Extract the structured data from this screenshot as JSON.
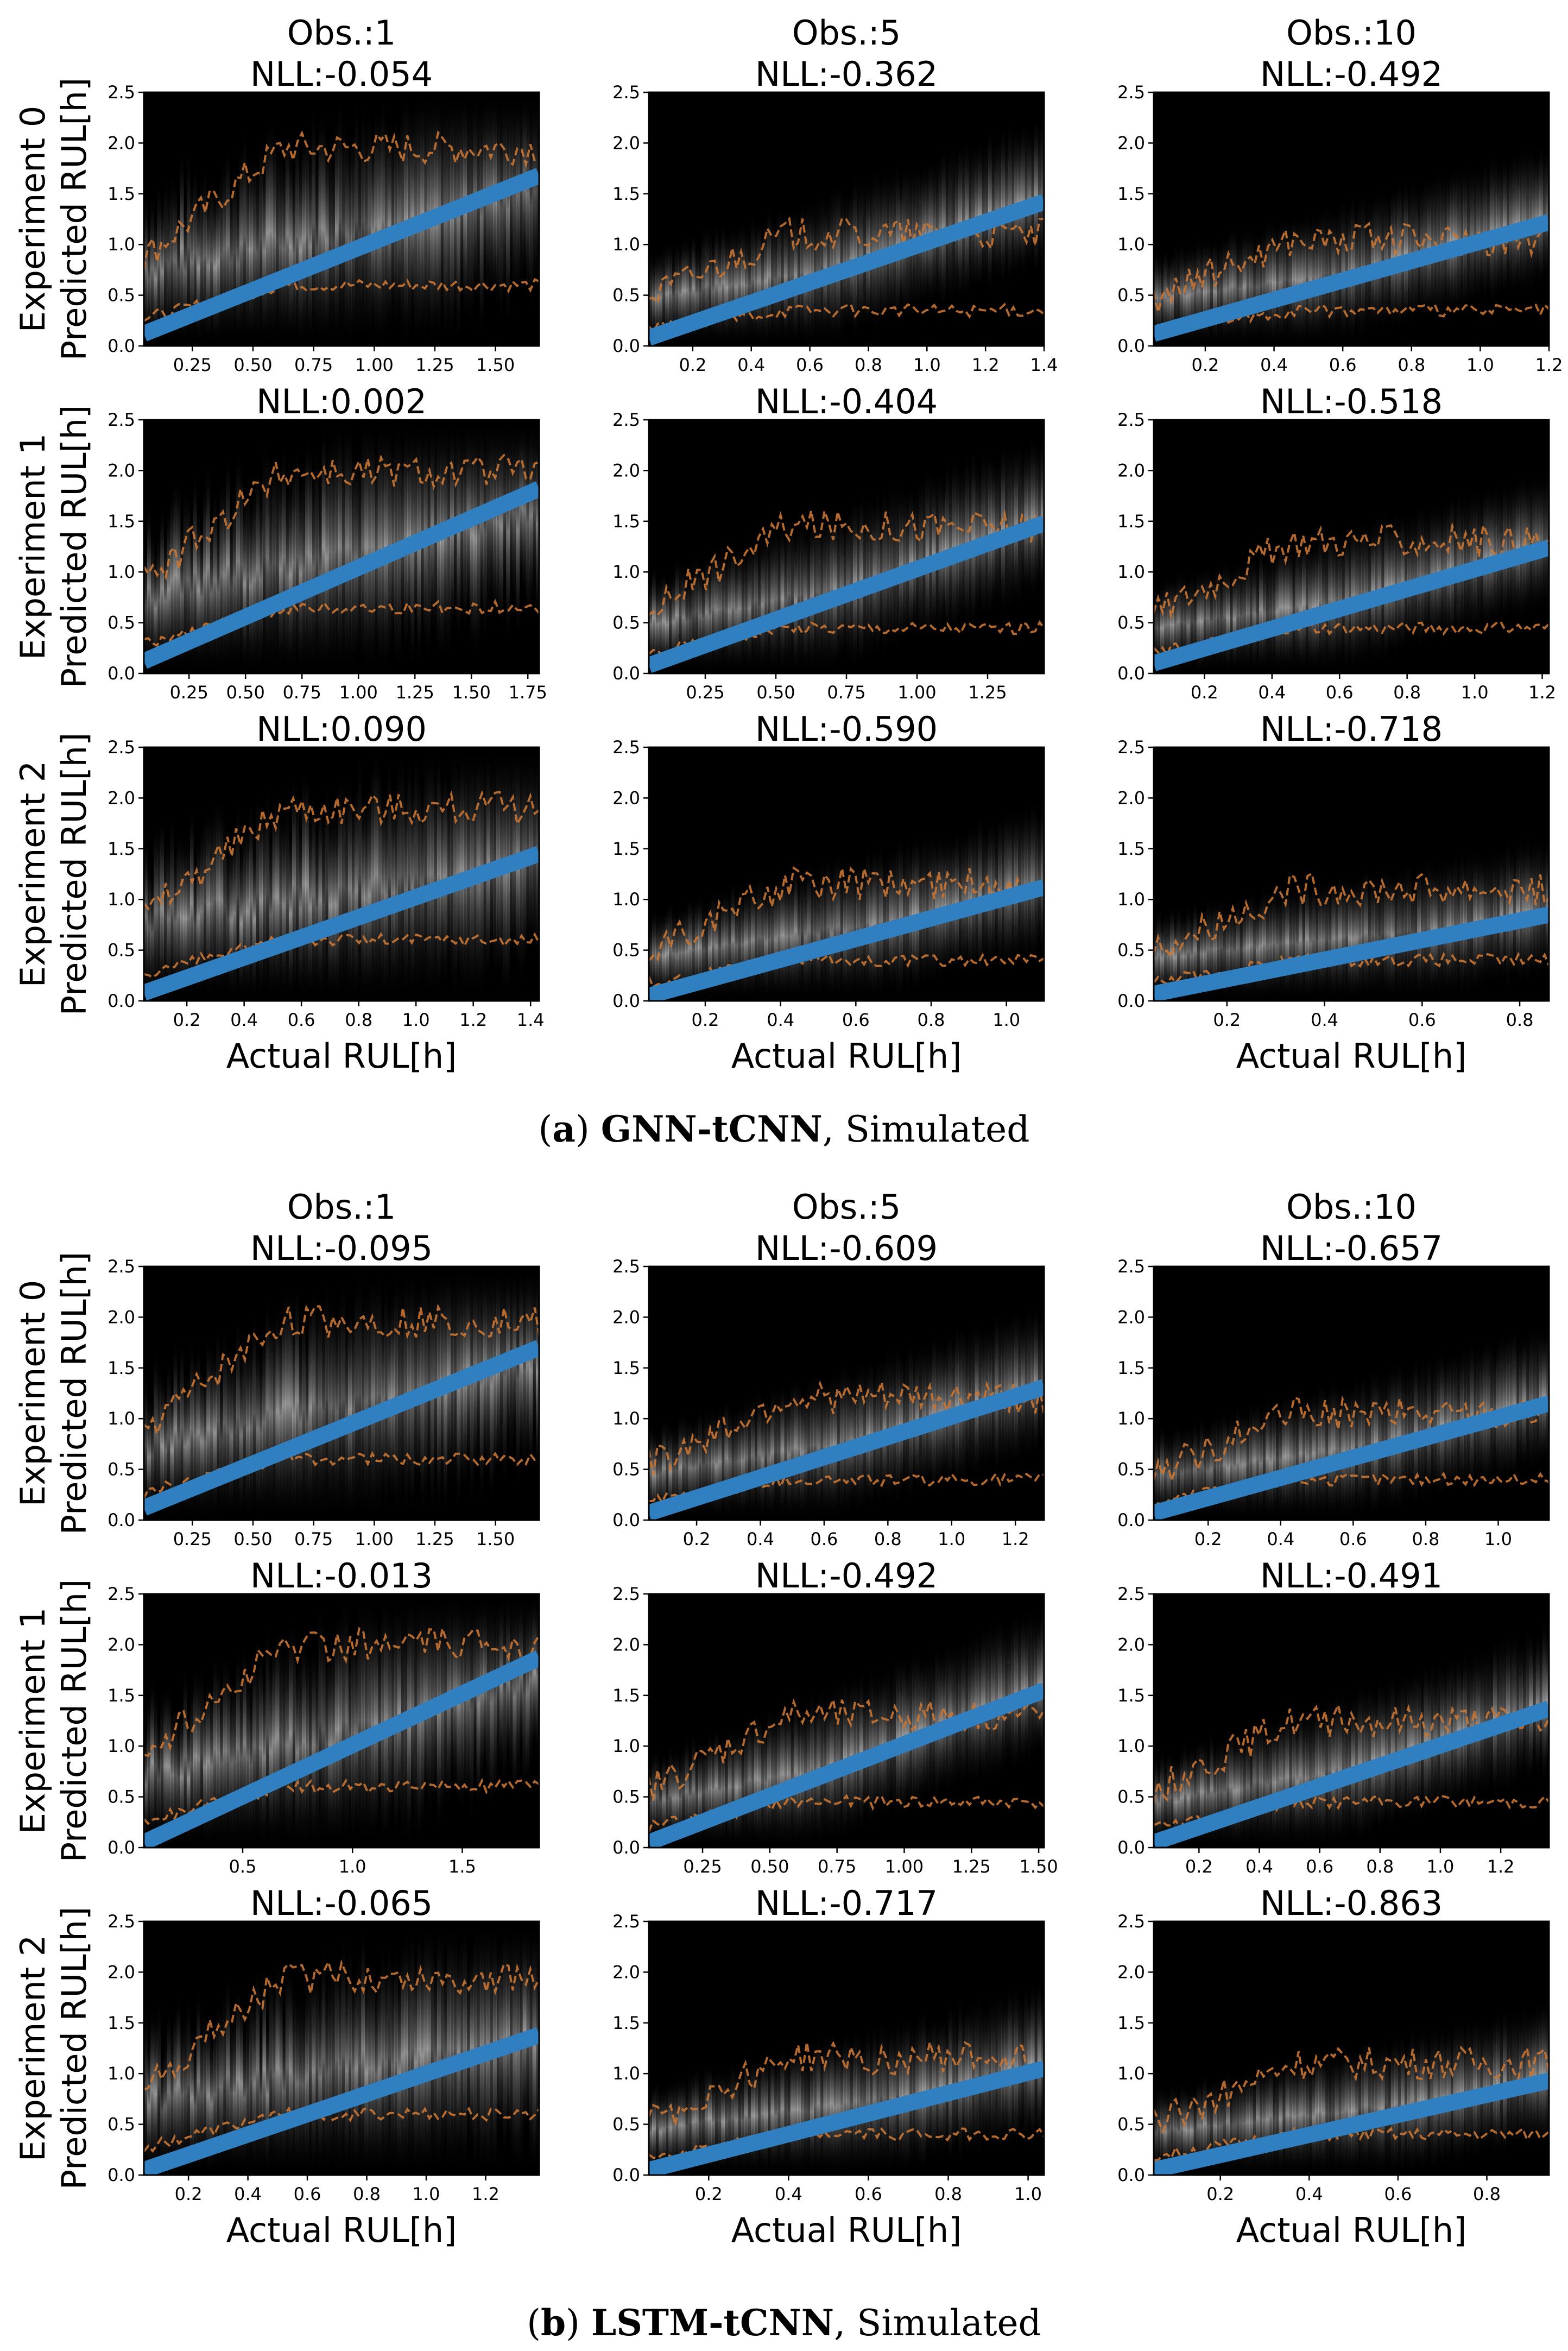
{
  "figure": {
    "captions": [
      {
        "prefix": "(",
        "letter": "a",
        "close": ")",
        "model": "GNN-tCNN",
        "rest": ", Simulated"
      },
      {
        "prefix": "(",
        "letter": "b",
        "close": ")",
        "model": "LSTM-tCNN",
        "rest": ", Simulated"
      }
    ],
    "column_titles": [
      "Obs.:1",
      "Obs.:5",
      "Obs.:10"
    ],
    "row_labels": [
      "Experiment 0",
      "Experiment 1",
      "Experiment 2"
    ],
    "ylabel": "Predicted RUL[h]",
    "xlabel": "Actual RUL[h]",
    "colors": {
      "fit_line": "#2f7fc1",
      "quantile": "#c87533",
      "background": "#000000",
      "density": "#cfcfcf"
    }
  },
  "chart_data": [
    {
      "type": "heatmap",
      "group": "GNN-tCNN",
      "row": 0,
      "col": 0,
      "title": "NLL:-0.054",
      "xlim": [
        0.05,
        1.68
      ],
      "xticks": [
        0.25,
        0.5,
        0.75,
        1.0,
        1.25,
        1.5
      ],
      "xtick_labels": [
        "0.25",
        "0.50",
        "0.75",
        "1.00",
        "1.25",
        "1.50"
      ],
      "ylim": [
        0,
        2.5
      ],
      "yticks": [
        0,
        0.5,
        1.0,
        1.5,
        2.0,
        2.5
      ],
      "ytick_labels": [
        "0.0",
        "0.5",
        "1.0",
        "1.5",
        "2.0",
        "2.5"
      ],
      "line": [
        [
          0.05,
          0.12
        ],
        [
          1.68,
          1.68
        ]
      ],
      "upper": 1.95,
      "lower": 0.6,
      "spread": 0.75
    },
    {
      "type": "heatmap",
      "group": "GNN-tCNN",
      "row": 0,
      "col": 1,
      "title": "NLL:-0.362",
      "xlim": [
        0.05,
        1.4
      ],
      "xticks": [
        0.2,
        0.4,
        0.6,
        0.8,
        1.0,
        1.2,
        1.4
      ],
      "xtick_labels": [
        "0.2",
        "0.4",
        "0.6",
        "0.8",
        "1.0",
        "1.2",
        "1.4"
      ],
      "ylim": [
        0,
        2.5
      ],
      "yticks": [
        0,
        0.5,
        1.0,
        1.5,
        2.0,
        2.5
      ],
      "ytick_labels": [
        "0.0",
        "0.5",
        "1.0",
        "1.5",
        "2.0",
        "2.5"
      ],
      "line": [
        [
          0.05,
          0.08
        ],
        [
          1.4,
          1.42
        ]
      ],
      "upper": 1.1,
      "lower": 0.35,
      "spread": 0.2
    },
    {
      "type": "heatmap",
      "group": "GNN-tCNN",
      "row": 0,
      "col": 2,
      "title": "NLL:-0.492",
      "xlim": [
        0.05,
        1.2
      ],
      "xticks": [
        0.2,
        0.4,
        0.6,
        0.8,
        1.0,
        1.2
      ],
      "xtick_labels": [
        "0.2",
        "0.4",
        "0.6",
        "0.8",
        "1.0",
        "1.2"
      ],
      "ylim": [
        0,
        2.5
      ],
      "yticks": [
        0,
        0.5,
        1.0,
        1.5,
        2.0,
        2.5
      ],
      "ytick_labels": [
        "0.0",
        "0.5",
        "1.0",
        "1.5",
        "2.0",
        "2.5"
      ],
      "line": [
        [
          0.05,
          0.12
        ],
        [
          1.2,
          1.22
        ]
      ],
      "upper": 1.05,
      "lower": 0.35,
      "spread": 0.15
    },
    {
      "type": "heatmap",
      "group": "GNN-tCNN",
      "row": 1,
      "col": 0,
      "title": "NLL:0.002",
      "xlim": [
        0.05,
        1.8
      ],
      "xticks": [
        0.25,
        0.5,
        0.75,
        1.0,
        1.25,
        1.5,
        1.75
      ],
      "xtick_labels": [
        "0.25",
        "0.50",
        "0.75",
        "1.00",
        "1.25",
        "1.50",
        "1.75"
      ],
      "ylim": [
        0,
        2.5
      ],
      "yticks": [
        0,
        0.5,
        1.0,
        1.5,
        2.0,
        2.5
      ],
      "ytick_labels": [
        "0.0",
        "0.5",
        "1.0",
        "1.5",
        "2.0",
        "2.5"
      ],
      "line": [
        [
          0.05,
          0.12
        ],
        [
          1.8,
          1.82
        ]
      ],
      "upper": 2.0,
      "lower": 0.65,
      "spread": 0.75
    },
    {
      "type": "heatmap",
      "group": "GNN-tCNN",
      "row": 1,
      "col": 1,
      "title": "NLL:-0.404",
      "xlim": [
        0.05,
        1.45
      ],
      "xticks": [
        0.25,
        0.5,
        0.75,
        1.0,
        1.25
      ],
      "xtick_labels": [
        "0.25",
        "0.50",
        "0.75",
        "1.00",
        "1.25"
      ],
      "ylim": [
        0,
        2.5
      ],
      "yticks": [
        0,
        0.5,
        1.0,
        1.5,
        2.0,
        2.5
      ],
      "ytick_labels": [
        "0.0",
        "0.5",
        "1.0",
        "1.5",
        "2.0",
        "2.5"
      ],
      "line": [
        [
          0.05,
          0.08
        ],
        [
          1.45,
          1.48
        ]
      ],
      "upper": 1.45,
      "lower": 0.45,
      "spread": 0.25
    },
    {
      "type": "heatmap",
      "group": "GNN-tCNN",
      "row": 1,
      "col": 2,
      "title": "NLL:-0.518",
      "xlim": [
        0.05,
        1.22
      ],
      "xticks": [
        0.2,
        0.4,
        0.6,
        0.8,
        1.0,
        1.2
      ],
      "xtick_labels": [
        "0.2",
        "0.4",
        "0.6",
        "0.8",
        "1.0",
        "1.2"
      ],
      "ylim": [
        0,
        2.5
      ],
      "yticks": [
        0,
        0.5,
        1.0,
        1.5,
        2.0,
        2.5
      ],
      "ytick_labels": [
        "0.0",
        "0.5",
        "1.0",
        "1.5",
        "2.0",
        "2.5"
      ],
      "line": [
        [
          0.05,
          0.1
        ],
        [
          1.22,
          1.24
        ]
      ],
      "upper": 1.3,
      "lower": 0.45,
      "spread": 0.15
    },
    {
      "type": "heatmap",
      "group": "GNN-tCNN",
      "row": 2,
      "col": 0,
      "title": "NLL:0.090",
      "xlim": [
        0.05,
        1.43
      ],
      "xticks": [
        0.2,
        0.4,
        0.6,
        0.8,
        1.0,
        1.2,
        1.4
      ],
      "xtick_labels": [
        "0.2",
        "0.4",
        "0.6",
        "0.8",
        "1.0",
        "1.2",
        "1.4"
      ],
      "ylim": [
        0,
        2.5
      ],
      "yticks": [
        0,
        0.5,
        1.0,
        1.5,
        2.0,
        2.5
      ],
      "ytick_labels": [
        "0.0",
        "0.5",
        "1.0",
        "1.5",
        "2.0",
        "2.5"
      ],
      "line": [
        [
          0.05,
          0.08
        ],
        [
          1.43,
          1.45
        ]
      ],
      "upper": 1.9,
      "lower": 0.6,
      "spread": 0.75
    },
    {
      "type": "heatmap",
      "group": "GNN-tCNN",
      "row": 2,
      "col": 1,
      "title": "NLL:-0.590",
      "xlim": [
        0.05,
        1.1
      ],
      "xticks": [
        0.2,
        0.4,
        0.6,
        0.8,
        1.0
      ],
      "xtick_labels": [
        "0.2",
        "0.4",
        "0.6",
        "0.8",
        "1.0"
      ],
      "ylim": [
        0,
        2.5
      ],
      "yticks": [
        0,
        0.5,
        1.0,
        1.5,
        2.0,
        2.5
      ],
      "ytick_labels": [
        "0.0",
        "0.5",
        "1.0",
        "1.5",
        "2.0",
        "2.5"
      ],
      "line": [
        [
          0.05,
          0.05
        ],
        [
          1.1,
          1.12
        ]
      ],
      "upper": 1.15,
      "lower": 0.4,
      "spread": 0.2
    },
    {
      "type": "heatmap",
      "group": "GNN-tCNN",
      "row": 2,
      "col": 2,
      "title": "NLL:-0.718",
      "xlim": [
        0.05,
        0.86
      ],
      "xticks": [
        0.2,
        0.4,
        0.6,
        0.8
      ],
      "xtick_labels": [
        "0.2",
        "0.4",
        "0.6",
        "0.8"
      ],
      "ylim": [
        0,
        2.5
      ],
      "yticks": [
        0,
        0.5,
        1.0,
        1.5,
        2.0,
        2.5
      ],
      "ytick_labels": [
        "0.0",
        "0.5",
        "1.0",
        "1.5",
        "2.0",
        "2.5"
      ],
      "line": [
        [
          0.05,
          0.07
        ],
        [
          0.86,
          0.85
        ]
      ],
      "upper": 1.1,
      "lower": 0.4,
      "spread": 0.15
    },
    {
      "type": "heatmap",
      "group": "LSTM-tCNN",
      "row": 0,
      "col": 0,
      "title": "NLL:-0.095",
      "xlim": [
        0.05,
        1.68
      ],
      "xticks": [
        0.25,
        0.5,
        0.75,
        1.0,
        1.25,
        1.5
      ],
      "xtick_labels": [
        "0.25",
        "0.50",
        "0.75",
        "1.00",
        "1.25",
        "1.50"
      ],
      "ylim": [
        0,
        2.5
      ],
      "yticks": [
        0,
        0.5,
        1.0,
        1.5,
        2.0,
        2.5
      ],
      "ytick_labels": [
        "0.0",
        "0.5",
        "1.0",
        "1.5",
        "2.0",
        "2.5"
      ],
      "line": [
        [
          0.05,
          0.12
        ],
        [
          1.68,
          1.7
        ]
      ],
      "upper": 1.95,
      "lower": 0.6,
      "spread": 0.7
    },
    {
      "type": "heatmap",
      "group": "LSTM-tCNN",
      "row": 0,
      "col": 1,
      "title": "NLL:-0.609",
      "xlim": [
        0.05,
        1.29
      ],
      "xticks": [
        0.2,
        0.4,
        0.6,
        0.8,
        1.0,
        1.2
      ],
      "xtick_labels": [
        "0.2",
        "0.4",
        "0.6",
        "0.8",
        "1.0",
        "1.2"
      ],
      "ylim": [
        0,
        2.5
      ],
      "yticks": [
        0,
        0.5,
        1.0,
        1.5,
        2.0,
        2.5
      ],
      "ytick_labels": [
        "0.0",
        "0.5",
        "1.0",
        "1.5",
        "2.0",
        "2.5"
      ],
      "line": [
        [
          0.05,
          0.07
        ],
        [
          1.29,
          1.31
        ]
      ],
      "upper": 1.2,
      "lower": 0.4,
      "spread": 0.2
    },
    {
      "type": "heatmap",
      "group": "LSTM-tCNN",
      "row": 0,
      "col": 2,
      "title": "NLL:-0.657",
      "xlim": [
        0.05,
        1.14
      ],
      "xticks": [
        0.2,
        0.4,
        0.6,
        0.8,
        1.0
      ],
      "xtick_labels": [
        "0.2",
        "0.4",
        "0.6",
        "0.8",
        "1.0"
      ],
      "ylim": [
        0,
        2.5
      ],
      "yticks": [
        0,
        0.5,
        1.0,
        1.5,
        2.0,
        2.5
      ],
      "ytick_labels": [
        "0.0",
        "0.5",
        "1.0",
        "1.5",
        "2.0",
        "2.5"
      ],
      "line": [
        [
          0.05,
          0.07
        ],
        [
          1.14,
          1.15
        ]
      ],
      "upper": 1.05,
      "lower": 0.4,
      "spread": 0.15
    },
    {
      "type": "heatmap",
      "group": "LSTM-tCNN",
      "row": 1,
      "col": 0,
      "title": "NLL:-0.013",
      "xlim": [
        0.05,
        1.85
      ],
      "xticks": [
        0.5,
        1.0,
        1.5
      ],
      "xtick_labels": [
        "0.5",
        "1.0",
        "1.5"
      ],
      "ylim": [
        0,
        2.5
      ],
      "yticks": [
        0,
        0.5,
        1.0,
        1.5,
        2.0,
        2.5
      ],
      "ytick_labels": [
        "0.0",
        "0.5",
        "1.0",
        "1.5",
        "2.0",
        "2.5"
      ],
      "line": [
        [
          0.05,
          0.05
        ],
        [
          1.85,
          1.87
        ]
      ],
      "upper": 2.0,
      "lower": 0.6,
      "spread": 0.7
    },
    {
      "type": "heatmap",
      "group": "LSTM-tCNN",
      "row": 1,
      "col": 1,
      "title": "NLL:-0.492",
      "xlim": [
        0.05,
        1.52
      ],
      "xticks": [
        0.25,
        0.5,
        0.75,
        1.0,
        1.25,
        1.5
      ],
      "xtick_labels": [
        "0.25",
        "0.50",
        "0.75",
        "1.00",
        "1.25",
        "1.50"
      ],
      "ylim": [
        0,
        2.5
      ],
      "yticks": [
        0,
        0.5,
        1.0,
        1.5,
        2.0,
        2.5
      ],
      "ytick_labels": [
        "0.0",
        "0.5",
        "1.0",
        "1.5",
        "2.0",
        "2.5"
      ],
      "line": [
        [
          0.05,
          0.05
        ],
        [
          1.52,
          1.55
        ]
      ],
      "upper": 1.3,
      "lower": 0.45,
      "spread": 0.2
    },
    {
      "type": "heatmap",
      "group": "LSTM-tCNN",
      "row": 1,
      "col": 2,
      "title": "NLL:-0.491",
      "xlim": [
        0.05,
        1.36
      ],
      "xticks": [
        0.2,
        0.4,
        0.6,
        0.8,
        1.0,
        1.2
      ],
      "xtick_labels": [
        "0.2",
        "0.4",
        "0.6",
        "0.8",
        "1.0",
        "1.2"
      ],
      "ylim": [
        0,
        2.5
      ],
      "yticks": [
        0,
        0.5,
        1.0,
        1.5,
        2.0,
        2.5
      ],
      "ytick_labels": [
        "0.0",
        "0.5",
        "1.0",
        "1.5",
        "2.0",
        "2.5"
      ],
      "line": [
        [
          0.05,
          0.05
        ],
        [
          1.36,
          1.37
        ]
      ],
      "upper": 1.25,
      "lower": 0.45,
      "spread": 0.2
    },
    {
      "type": "heatmap",
      "group": "LSTM-tCNN",
      "row": 2,
      "col": 0,
      "title": "NLL:-0.065",
      "xlim": [
        0.05,
        1.38
      ],
      "xticks": [
        0.2,
        0.4,
        0.6,
        0.8,
        1.0,
        1.2
      ],
      "xtick_labels": [
        "0.2",
        "0.4",
        "0.6",
        "0.8",
        "1.0",
        "1.2"
      ],
      "ylim": [
        0,
        2.5
      ],
      "yticks": [
        0,
        0.5,
        1.0,
        1.5,
        2.0,
        2.5
      ],
      "ytick_labels": [
        "0.0",
        "0.5",
        "1.0",
        "1.5",
        "2.0",
        "2.5"
      ],
      "line": [
        [
          0.05,
          0.05
        ],
        [
          1.38,
          1.38
        ]
      ],
      "upper": 1.95,
      "lower": 0.6,
      "spread": 0.75
    },
    {
      "type": "heatmap",
      "group": "LSTM-tCNN",
      "row": 2,
      "col": 1,
      "title": "NLL:-0.717",
      "xlim": [
        0.05,
        1.04
      ],
      "xticks": [
        0.2,
        0.4,
        0.6,
        0.8,
        1.0
      ],
      "xtick_labels": [
        "0.2",
        "0.4",
        "0.6",
        "0.8",
        "1.0"
      ],
      "ylim": [
        0,
        2.5
      ],
      "yticks": [
        0,
        0.5,
        1.0,
        1.5,
        2.0,
        2.5
      ],
      "ytick_labels": [
        "0.0",
        "0.5",
        "1.0",
        "1.5",
        "2.0",
        "2.5"
      ],
      "line": [
        [
          0.05,
          0.05
        ],
        [
          1.04,
          1.05
        ]
      ],
      "upper": 1.15,
      "lower": 0.4,
      "spread": 0.2
    },
    {
      "type": "heatmap",
      "group": "LSTM-tCNN",
      "row": 2,
      "col": 2,
      "title": "NLL:-0.863",
      "xlim": [
        0.05,
        0.94
      ],
      "xticks": [
        0.2,
        0.4,
        0.6,
        0.8
      ],
      "xtick_labels": [
        "0.2",
        "0.4",
        "0.6",
        "0.8"
      ],
      "ylim": [
        0,
        2.5
      ],
      "yticks": [
        0,
        0.5,
        1.0,
        1.5,
        2.0,
        2.5
      ],
      "ytick_labels": [
        "0.0",
        "0.5",
        "1.0",
        "1.5",
        "2.0",
        "2.5"
      ],
      "line": [
        [
          0.05,
          0.05
        ],
        [
          0.94,
          0.93
        ]
      ],
      "upper": 1.1,
      "lower": 0.4,
      "spread": 0.15
    }
  ]
}
